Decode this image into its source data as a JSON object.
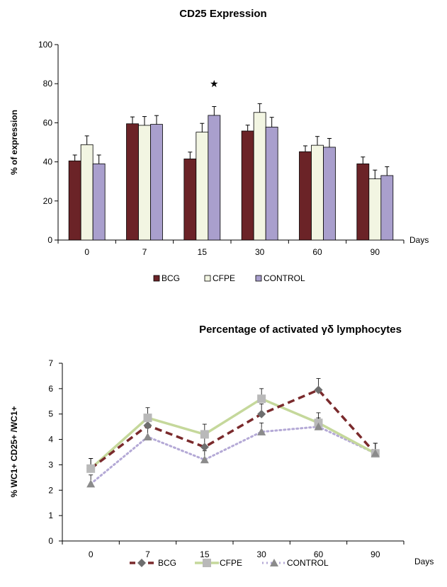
{
  "chart_data": [
    {
      "type": "bar",
      "title": "CD25 Expression",
      "ylabel": "% of  expression",
      "xlabel": "Days",
      "ylim": [
        0,
        100
      ],
      "yticks": [
        0,
        20,
        40,
        60,
        80,
        100
      ],
      "categories": [
        "0",
        "7",
        "15",
        "30",
        "60",
        "90"
      ],
      "series": [
        {
          "name": "BCG",
          "color": "#6b2327",
          "values": [
            40.5,
            59.5,
            41.5,
            55.8,
            45.2,
            39
          ],
          "errors": [
            3,
            3.5,
            3.5,
            3,
            3,
            3.5
          ]
        },
        {
          "name": "CFPE",
          "color": "#f2f5e2",
          "values": [
            48.8,
            58.7,
            55.2,
            65.3,
            48.5,
            31.3
          ],
          "errors": [
            4.5,
            4.5,
            4.5,
            4.5,
            4.5,
            4.5
          ]
        },
        {
          "name": "CONTROL",
          "color": "#a99fcd",
          "values": [
            39,
            59.2,
            63.8,
            57.8,
            47.5,
            33
          ],
          "errors": [
            4.5,
            4.5,
            4.5,
            5,
            4.5,
            4.5
          ]
        }
      ],
      "annotations": [
        {
          "text": "★",
          "category": "15",
          "y": 80
        }
      ],
      "grid": false,
      "legend_position": "bottom"
    },
    {
      "type": "line",
      "title": "Percentage of activated γδ  lymphocytes",
      "ylabel": "% WC1+  CD25+ /WC1+",
      "xlabel": "Days",
      "ylim": [
        0,
        7
      ],
      "yticks": [
        0,
        1,
        2,
        3,
        4,
        5,
        6,
        7
      ],
      "categories": [
        "0",
        "7",
        "15",
        "30",
        "60",
        "90"
      ],
      "series": [
        {
          "name": "BCG",
          "color": "#7a2a2c",
          "marker": "diamond",
          "line": "dashed",
          "values": [
            2.85,
            4.55,
            3.7,
            5.0,
            5.95,
            3.45
          ],
          "errors": [
            0.4,
            0.4,
            0.4,
            0.4,
            0.45,
            0.4
          ]
        },
        {
          "name": "CFPE",
          "color": "#c5d89b",
          "marker": "square",
          "line": "solid",
          "values": [
            2.85,
            4.85,
            4.2,
            5.6,
            4.65,
            3.45
          ],
          "errors": [
            0.4,
            0.4,
            0.4,
            0.4,
            0.4,
            0.4
          ]
        },
        {
          "name": "CONTROL",
          "color": "#b4a9d6",
          "marker": "triangle",
          "line": "dotted",
          "values": [
            2.25,
            4.1,
            3.2,
            4.3,
            4.5,
            3.45
          ],
          "errors": [
            0.35,
            0.35,
            0.35,
            0.35,
            0.35,
            0.4
          ]
        }
      ],
      "grid": false,
      "legend_position": "bottom"
    }
  ]
}
